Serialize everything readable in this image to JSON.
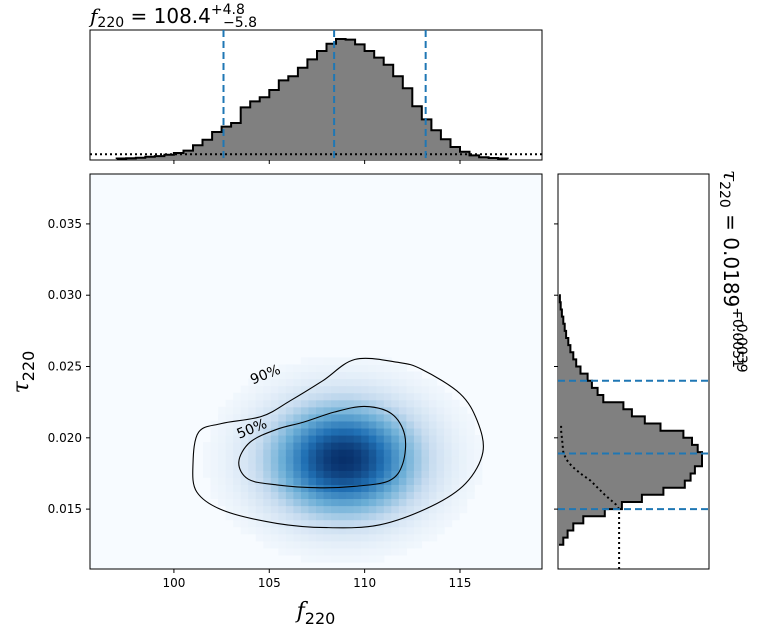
{
  "title_top": {
    "symbol": "f",
    "sub": "220",
    "eq": " = 108.4",
    "sup": "+4.8",
    "subs": "−5.8"
  },
  "title_right": {
    "symbol": "τ",
    "sub": "220",
    "eq": " = 0.0189",
    "sup": "+0.0051",
    "subs": "−0.0039"
  },
  "chart_data": {
    "type": "heatmap",
    "xlabel": {
      "symbol": "f",
      "sub": "220"
    },
    "ylabel": {
      "symbol": "τ",
      "sub": "220"
    },
    "xlim": [
      95.6,
      119.3
    ],
    "ylim": [
      0.0108,
      0.0385
    ],
    "xticks": [
      100,
      105,
      110,
      115
    ],
    "yticks": [
      0.015,
      0.02,
      0.025,
      0.03,
      0.035
    ],
    "ytick_labels": [
      "0.015",
      "0.020",
      "0.025",
      "0.030",
      "0.035"
    ],
    "colormap": [
      "#f7fbff",
      "#c6dbef",
      "#6baed6",
      "#2171b5",
      "#08306b"
    ],
    "density_peak": {
      "x": 108.9,
      "y": 0.0185
    },
    "density_spread": {
      "x": 2.6,
      "y": 0.0026
    },
    "contours": [
      {
        "label": "50%",
        "points": [
          [
            103.4,
            0.0183
          ],
          [
            104.0,
            0.0197
          ],
          [
            105.4,
            0.0206
          ],
          [
            106.8,
            0.0211
          ],
          [
            108.4,
            0.0218
          ],
          [
            110.0,
            0.0222
          ],
          [
            111.4,
            0.0217
          ],
          [
            112.1,
            0.0202
          ],
          [
            112.0,
            0.0182
          ],
          [
            111.3,
            0.017
          ],
          [
            109.5,
            0.0166
          ],
          [
            107.5,
            0.0165
          ],
          [
            105.4,
            0.0167
          ],
          [
            103.9,
            0.0171
          ]
        ]
      },
      {
        "label": "90%",
        "points": [
          [
            101.0,
            0.0182
          ],
          [
            101.3,
            0.0204
          ],
          [
            102.5,
            0.021
          ],
          [
            104.6,
            0.0215
          ],
          [
            106.1,
            0.0226
          ],
          [
            107.8,
            0.024
          ],
          [
            109.5,
            0.0255
          ],
          [
            111.7,
            0.0253
          ],
          [
            113.0,
            0.0248
          ],
          [
            115.0,
            0.0231
          ],
          [
            115.9,
            0.0212
          ],
          [
            116.2,
            0.019
          ],
          [
            115.3,
            0.0168
          ],
          [
            113.5,
            0.0152
          ],
          [
            110.8,
            0.0139
          ],
          [
            108.0,
            0.0137
          ],
          [
            105.4,
            0.014
          ],
          [
            102.6,
            0.0149
          ],
          [
            101.2,
            0.0162
          ]
        ]
      }
    ],
    "contour_label_positions": [
      {
        "label": "50%",
        "x": 104.1,
        "y": 0.0206
      },
      {
        "label": "90%",
        "x": 104.8,
        "y": 0.0244
      }
    ],
    "marginal_x": {
      "bin_edges": [
        97.0,
        97.5,
        98.0,
        98.5,
        99.0,
        99.5,
        100.0,
        100.5,
        101.0,
        101.5,
        102.0,
        102.5,
        103.0,
        103.5,
        104.0,
        104.5,
        105.0,
        105.5,
        106.0,
        106.5,
        107.0,
        107.5,
        108.0,
        108.5,
        109.0,
        109.5,
        110.0,
        110.5,
        111.0,
        111.5,
        112.0,
        112.5,
        113.0,
        113.5,
        114.0,
        114.5,
        115.0,
        115.5,
        116.0,
        116.5,
        117.0,
        117.5
      ],
      "values": [
        0.004,
        0.007,
        0.01,
        0.018,
        0.024,
        0.035,
        0.05,
        0.07,
        0.115,
        0.16,
        0.225,
        0.27,
        0.3,
        0.43,
        0.48,
        0.515,
        0.575,
        0.655,
        0.69,
        0.76,
        0.83,
        0.9,
        0.96,
        1.0,
        0.995,
        0.955,
        0.9,
        0.845,
        0.785,
        0.69,
        0.59,
        0.44,
        0.33,
        0.24,
        0.165,
        0.1,
        0.06,
        0.03,
        0.015,
        0.008,
        0.004
      ],
      "prior_level": 0.04,
      "quantile_lines": [
        102.6,
        108.4,
        113.2
      ]
    },
    "marginal_y": {
      "bin_edges": [
        0.0125,
        0.013,
        0.0135,
        0.014,
        0.0145,
        0.015,
        0.0155,
        0.016,
        0.0165,
        0.017,
        0.0175,
        0.018,
        0.0185,
        0.019,
        0.0195,
        0.02,
        0.0205,
        0.021,
        0.0215,
        0.022,
        0.0225,
        0.023,
        0.0235,
        0.024,
        0.0245,
        0.025,
        0.0255,
        0.026,
        0.0265,
        0.027,
        0.0275,
        0.028,
        0.0285,
        0.029,
        0.0295,
        0.03
      ],
      "values": [
        0.03,
        0.06,
        0.1,
        0.17,
        0.32,
        0.44,
        0.58,
        0.73,
        0.88,
        0.92,
        0.95,
        1.0,
        1.0,
        0.97,
        0.93,
        0.87,
        0.71,
        0.6,
        0.51,
        0.45,
        0.31,
        0.27,
        0.23,
        0.2,
        0.15,
        0.12,
        0.1,
        0.08,
        0.065,
        0.05,
        0.04,
        0.03,
        0.02,
        0.012,
        0.006
      ],
      "prior_outline": [
        [
          0.0108,
          0.42
        ],
        [
          0.015,
          0.42
        ],
        [
          0.0153,
          0.4
        ],
        [
          0.016,
          0.32
        ],
        [
          0.0165,
          0.27
        ],
        [
          0.017,
          0.22
        ],
        [
          0.0175,
          0.15
        ],
        [
          0.018,
          0.09
        ],
        [
          0.0185,
          0.05
        ],
        [
          0.019,
          0.03
        ],
        [
          0.0195,
          0.025
        ],
        [
          0.02,
          0.02
        ],
        [
          0.0205,
          0.015
        ],
        [
          0.021,
          0.015
        ]
      ],
      "quantile_lines": [
        0.015,
        0.0189,
        0.024
      ]
    }
  }
}
